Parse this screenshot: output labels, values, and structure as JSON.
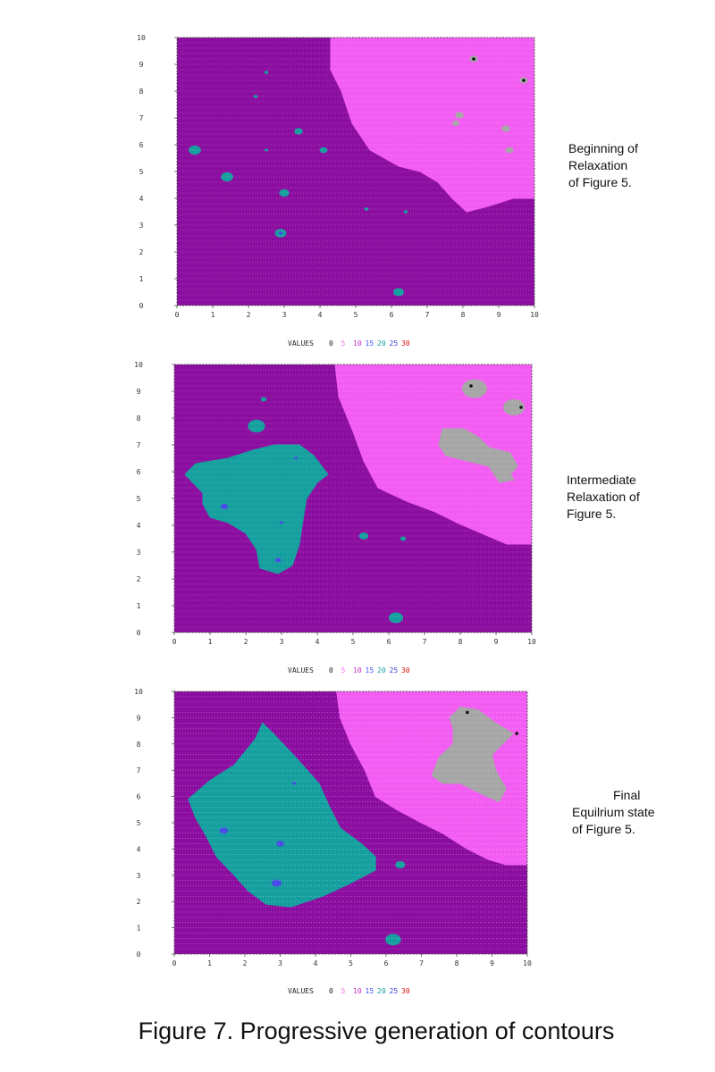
{
  "figure_caption": "Figure 7. Progressive generation of contours",
  "chart_data": [
    {
      "type": "heatmap",
      "title": "",
      "xlabel": "",
      "ylabel": "",
      "xlim": [
        0,
        10
      ],
      "ylim": [
        0,
        10
      ],
      "x_ticks": [
        "0",
        "1",
        "2",
        "3",
        "4",
        "5",
        "6",
        "7",
        "8",
        "9",
        "10"
      ],
      "y_ticks": [
        "0",
        "1",
        "2",
        "3",
        "4",
        "5",
        "6",
        "7",
        "8",
        "9",
        "10"
      ],
      "grid": true,
      "legend": {
        "title": "VALUES",
        "values": [
          "0",
          "5",
          "10",
          "15",
          "20",
          "25",
          "30"
        ],
        "placement": "bottom"
      },
      "caption_lines": [
        "Beginning of",
        "Relaxation",
        "of Figure 5."
      ],
      "regions": [
        {
          "value": 5,
          "shape": "polygon",
          "points": [
            [
              0.0,
              10.0
            ],
            [
              4.3,
              10.0
            ],
            [
              4.3,
              8.8
            ],
            [
              4.6,
              8.0
            ],
            [
              4.9,
              6.8
            ],
            [
              5.4,
              5.8
            ],
            [
              6.2,
              5.2
            ],
            [
              6.8,
              5.0
            ],
            [
              7.3,
              4.6
            ],
            [
              7.7,
              4.0
            ],
            [
              8.1,
              3.5
            ],
            [
              8.7,
              3.7
            ],
            [
              9.4,
              4.0
            ],
            [
              10.0,
              4.0
            ],
            [
              10.0,
              0.0
            ],
            [
              0.0,
              0.0
            ]
          ]
        },
        {
          "value": 10,
          "shape": "polygon",
          "points": [
            [
              4.3,
              10.0
            ],
            [
              10.0,
              10.0
            ],
            [
              10.0,
              4.0
            ],
            [
              9.4,
              4.0
            ],
            [
              8.7,
              3.7
            ],
            [
              8.1,
              3.5
            ],
            [
              7.7,
              4.0
            ],
            [
              7.3,
              4.6
            ],
            [
              6.8,
              5.0
            ],
            [
              6.2,
              5.2
            ],
            [
              5.4,
              5.8
            ],
            [
              4.9,
              6.8
            ],
            [
              4.6,
              8.0
            ],
            [
              4.3,
              8.8
            ]
          ]
        },
        {
          "value": 20,
          "shape": "spot",
          "cx": 0.5,
          "cy": 5.8,
          "r": 0.17
        },
        {
          "value": 20,
          "shape": "spot",
          "cx": 1.4,
          "cy": 4.8,
          "r": 0.17
        },
        {
          "value": 20,
          "shape": "spot",
          "cx": 3.0,
          "cy": 4.2,
          "r": 0.14
        },
        {
          "value": 20,
          "shape": "spot",
          "cx": 2.9,
          "cy": 2.7,
          "r": 0.16
        },
        {
          "value": 20,
          "shape": "spot",
          "cx": 3.4,
          "cy": 6.5,
          "r": 0.12
        },
        {
          "value": 20,
          "shape": "spot",
          "cx": 4.1,
          "cy": 5.8,
          "r": 0.11
        },
        {
          "value": 20,
          "shape": "spot",
          "cx": 6.2,
          "cy": 0.5,
          "r": 0.15
        },
        {
          "value": 20,
          "shape": "spot",
          "cx": 2.5,
          "cy": 8.7,
          "r": 0.06
        },
        {
          "value": 20,
          "shape": "spot",
          "cx": 2.2,
          "cy": 7.8,
          "r": 0.06
        },
        {
          "value": 20,
          "shape": "spot",
          "cx": 5.3,
          "cy": 3.6,
          "r": 0.06
        },
        {
          "value": 20,
          "shape": "spot",
          "cx": 6.4,
          "cy": 3.5,
          "r": 0.06
        },
        {
          "value": 20,
          "shape": "spot",
          "cx": 2.5,
          "cy": 5.8,
          "r": 0.05
        },
        {
          "value": 0,
          "shape": "spot",
          "cx": 8.3,
          "cy": 9.2,
          "r": 0.12
        },
        {
          "value": 0,
          "shape": "spot",
          "cx": 9.7,
          "cy": 8.4,
          "r": 0.12
        },
        {
          "value": 0,
          "shape": "spot",
          "cx": 7.9,
          "cy": 7.1,
          "r": 0.12
        },
        {
          "value": 0,
          "shape": "spot",
          "cx": 7.8,
          "cy": 6.8,
          "r": 0.1
        },
        {
          "value": 0,
          "shape": "spot",
          "cx": 9.2,
          "cy": 6.6,
          "r": 0.12
        },
        {
          "value": 0,
          "shape": "spot",
          "cx": 9.3,
          "cy": 5.8,
          "r": 0.11
        },
        {
          "value": 25,
          "shape": "spot",
          "cx": 2.9,
          "cy": 2.7,
          "r": 0.06
        }
      ],
      "markers": [
        {
          "x": 8.3,
          "y": 9.2
        },
        {
          "x": 9.7,
          "y": 8.4
        }
      ]
    },
    {
      "type": "heatmap",
      "title": "",
      "xlabel": "",
      "ylabel": "",
      "xlim": [
        0,
        10
      ],
      "ylim": [
        0,
        10
      ],
      "x_ticks": [
        "0",
        "1",
        "2",
        "3",
        "4",
        "5",
        "6",
        "7",
        "8",
        "9",
        "10"
      ],
      "y_ticks": [
        "0",
        "1",
        "2",
        "3",
        "4",
        "5",
        "6",
        "7",
        "8",
        "9",
        "10"
      ],
      "grid": true,
      "legend": {
        "title": "VALUES",
        "values": [
          "0",
          "5",
          "10",
          "15",
          "20",
          "25",
          "30"
        ],
        "placement": "bottom"
      },
      "caption_lines": [
        "Intermediate",
        "Relaxation of",
        "Figure 5."
      ],
      "regions": [
        {
          "value": 5,
          "shape": "polygon",
          "points": [
            [
              0.0,
              10.0
            ],
            [
              4.5,
              10.0
            ],
            [
              4.6,
              8.8
            ],
            [
              5.0,
              7.5
            ],
            [
              5.3,
              6.4
            ],
            [
              5.7,
              5.4
            ],
            [
              6.5,
              4.9
            ],
            [
              7.3,
              4.5
            ],
            [
              7.9,
              4.1
            ],
            [
              8.6,
              3.7
            ],
            [
              9.3,
              3.3
            ],
            [
              10.0,
              3.3
            ],
            [
              10.0,
              0.0
            ],
            [
              0.0,
              0.0
            ]
          ]
        },
        {
          "value": 10,
          "shape": "polygon",
          "points": [
            [
              4.5,
              10.0
            ],
            [
              10.0,
              10.0
            ],
            [
              10.0,
              3.3
            ],
            [
              9.3,
              3.3
            ],
            [
              8.6,
              3.7
            ],
            [
              7.9,
              4.1
            ],
            [
              7.3,
              4.5
            ],
            [
              6.5,
              4.9
            ],
            [
              5.7,
              5.4
            ],
            [
              5.3,
              6.4
            ],
            [
              5.0,
              7.5
            ],
            [
              4.6,
              8.8
            ]
          ]
        },
        {
          "value": 20,
          "shape": "polygon",
          "points": [
            [
              0.3,
              5.9
            ],
            [
              0.6,
              6.3
            ],
            [
              1.5,
              6.5
            ],
            [
              2.2,
              6.8
            ],
            [
              2.8,
              7.0
            ],
            [
              3.5,
              7.0
            ],
            [
              3.9,
              6.6
            ],
            [
              4.3,
              5.9
            ],
            [
              4.0,
              5.6
            ],
            [
              3.7,
              5.0
            ],
            [
              3.6,
              4.2
            ],
            [
              3.5,
              3.3
            ],
            [
              3.3,
              2.5
            ],
            [
              2.9,
              2.2
            ],
            [
              2.4,
              2.4
            ],
            [
              2.3,
              3.1
            ],
            [
              2.0,
              3.7
            ],
            [
              1.5,
              4.1
            ],
            [
              1.0,
              4.3
            ],
            [
              0.8,
              4.8
            ],
            [
              0.8,
              5.2
            ]
          ]
        },
        {
          "value": 20,
          "shape": "spot",
          "cx": 2.3,
          "cy": 7.7,
          "r": 0.24
        },
        {
          "value": 20,
          "shape": "spot",
          "cx": 2.5,
          "cy": 8.7,
          "r": 0.08
        },
        {
          "value": 20,
          "shape": "spot",
          "cx": 5.3,
          "cy": 3.6,
          "r": 0.13
        },
        {
          "value": 20,
          "shape": "spot",
          "cx": 6.4,
          "cy": 3.5,
          "r": 0.08
        },
        {
          "value": 20,
          "shape": "spot",
          "cx": 6.2,
          "cy": 0.55,
          "r": 0.2
        },
        {
          "value": 0,
          "shape": "spot",
          "cx": 8.4,
          "cy": 9.1,
          "r": 0.35
        },
        {
          "value": 0,
          "shape": "spot",
          "cx": 9.5,
          "cy": 8.4,
          "r": 0.3
        },
        {
          "value": 0,
          "shape": "polygon",
          "points": [
            [
              7.5,
              7.6
            ],
            [
              8.1,
              7.6
            ],
            [
              8.5,
              7.3
            ],
            [
              8.8,
              6.9
            ],
            [
              9.4,
              6.7
            ],
            [
              9.6,
              6.2
            ],
            [
              9.4,
              5.9
            ],
            [
              9.5,
              5.7
            ],
            [
              9.1,
              5.6
            ],
            [
              8.8,
              6.2
            ],
            [
              8.2,
              6.4
            ],
            [
              7.6,
              6.6
            ],
            [
              7.4,
              7.0
            ]
          ]
        },
        {
          "value": 25,
          "shape": "spot",
          "cx": 1.4,
          "cy": 4.7,
          "r": 0.1
        },
        {
          "value": 25,
          "shape": "spot",
          "cx": 2.9,
          "cy": 2.7,
          "r": 0.08
        },
        {
          "value": 25,
          "shape": "spot",
          "cx": 3.0,
          "cy": 4.1,
          "r": 0.05
        },
        {
          "value": 25,
          "shape": "spot",
          "cx": 3.4,
          "cy": 6.5,
          "r": 0.05
        }
      ],
      "markers": [
        {
          "x": 8.3,
          "y": 9.2
        },
        {
          "x": 9.7,
          "y": 8.4
        }
      ]
    },
    {
      "type": "heatmap",
      "title": "",
      "xlabel": "",
      "ylabel": "",
      "xlim": [
        0,
        10
      ],
      "ylim": [
        0,
        10
      ],
      "x_ticks": [
        "0",
        "1",
        "2",
        "3",
        "4",
        "5",
        "6",
        "7",
        "8",
        "9",
        "10"
      ],
      "y_ticks": [
        "0",
        "1",
        "2",
        "3",
        "4",
        "5",
        "6",
        "7",
        "8",
        "9",
        "10"
      ],
      "grid": true,
      "legend": {
        "title": "VALUES",
        "values": [
          "0",
          "5",
          "10",
          "15",
          "20",
          "25",
          "30"
        ],
        "placement": "bottom"
      },
      "caption_lines": [
        "Final",
        "Equilrium state",
        "of Figure 5."
      ],
      "regions": [
        {
          "value": 5,
          "shape": "polygon",
          "points": [
            [
              0.0,
              10.0
            ],
            [
              4.6,
              10.0
            ],
            [
              4.7,
              9.0
            ],
            [
              5.0,
              8.0
            ],
            [
              5.4,
              7.0
            ],
            [
              5.7,
              6.0
            ],
            [
              6.3,
              5.5
            ],
            [
              7.0,
              5.0
            ],
            [
              7.6,
              4.6
            ],
            [
              8.3,
              4.0
            ],
            [
              8.9,
              3.6
            ],
            [
              9.4,
              3.4
            ],
            [
              10.0,
              3.4
            ],
            [
              10.0,
              0.0
            ],
            [
              0.0,
              0.0
            ]
          ]
        },
        {
          "value": 10,
          "shape": "polygon",
          "points": [
            [
              4.6,
              10.0
            ],
            [
              10.0,
              10.0
            ],
            [
              10.0,
              3.4
            ],
            [
              9.4,
              3.4
            ],
            [
              8.9,
              3.6
            ],
            [
              8.3,
              4.0
            ],
            [
              7.6,
              4.6
            ],
            [
              7.0,
              5.0
            ],
            [
              6.3,
              5.5
            ],
            [
              5.7,
              6.0
            ],
            [
              5.4,
              7.0
            ],
            [
              5.0,
              8.0
            ],
            [
              4.7,
              9.0
            ]
          ]
        },
        {
          "value": 20,
          "shape": "polygon",
          "points": [
            [
              0.4,
              5.9
            ],
            [
              1.0,
              6.6
            ],
            [
              1.7,
              7.2
            ],
            [
              2.3,
              8.2
            ],
            [
              2.5,
              8.8
            ],
            [
              2.8,
              8.4
            ],
            [
              3.5,
              7.4
            ],
            [
              4.1,
              6.5
            ],
            [
              4.4,
              5.6
            ],
            [
              4.7,
              4.8
            ],
            [
              5.3,
              4.2
            ],
            [
              5.7,
              3.7
            ],
            [
              5.7,
              3.2
            ],
            [
              5.0,
              2.7
            ],
            [
              4.2,
              2.2
            ],
            [
              3.3,
              1.8
            ],
            [
              2.6,
              1.9
            ],
            [
              2.1,
              2.4
            ],
            [
              1.7,
              3.0
            ],
            [
              1.2,
              3.7
            ],
            [
              0.9,
              4.5
            ],
            [
              0.6,
              5.2
            ]
          ]
        },
        {
          "value": 20,
          "shape": "spot",
          "cx": 6.4,
          "cy": 3.4,
          "r": 0.14
        },
        {
          "value": 20,
          "shape": "spot",
          "cx": 6.2,
          "cy": 0.55,
          "r": 0.22
        },
        {
          "value": 0,
          "shape": "polygon",
          "points": [
            [
              7.8,
              9.0
            ],
            [
              8.1,
              9.4
            ],
            [
              8.6,
              9.3
            ],
            [
              9.1,
              8.8
            ],
            [
              9.6,
              8.4
            ],
            [
              9.3,
              8.0
            ],
            [
              9.0,
              7.6
            ],
            [
              9.1,
              7.0
            ],
            [
              9.4,
              6.3
            ],
            [
              9.2,
              5.8
            ],
            [
              8.7,
              6.1
            ],
            [
              8.1,
              6.5
            ],
            [
              7.6,
              6.5
            ],
            [
              7.3,
              6.8
            ],
            [
              7.5,
              7.5
            ],
            [
              7.9,
              8.0
            ],
            [
              7.9,
              8.6
            ]
          ]
        },
        {
          "value": 25,
          "shape": "spot",
          "cx": 1.4,
          "cy": 4.7,
          "r": 0.12
        },
        {
          "value": 25,
          "shape": "spot",
          "cx": 3.0,
          "cy": 4.2,
          "r": 0.11
        },
        {
          "value": 25,
          "shape": "spot",
          "cx": 2.9,
          "cy": 2.7,
          "r": 0.14
        },
        {
          "value": 25,
          "shape": "spot",
          "cx": 3.4,
          "cy": 6.5,
          "r": 0.05
        }
      ],
      "markers": [
        {
          "x": 8.3,
          "y": 9.2
        },
        {
          "x": 9.7,
          "y": 8.4
        }
      ]
    }
  ],
  "colors": {
    "0": "#a6a6a6",
    "5": "#8c0ea0",
    "10": "#f25cf2",
    "15": "#6e5aff",
    "20": "#169f9f",
    "25": "#4a4ae6",
    "30": "#e02020",
    "legend_text": [
      "#222222",
      "#f070f0",
      "#c830c8",
      "#4455ff",
      "#1aa3a3",
      "#3d3dd6",
      "#dd1111"
    ],
    "marker": "#111111",
    "gridline": "rgba(255,255,255,0.45)"
  }
}
